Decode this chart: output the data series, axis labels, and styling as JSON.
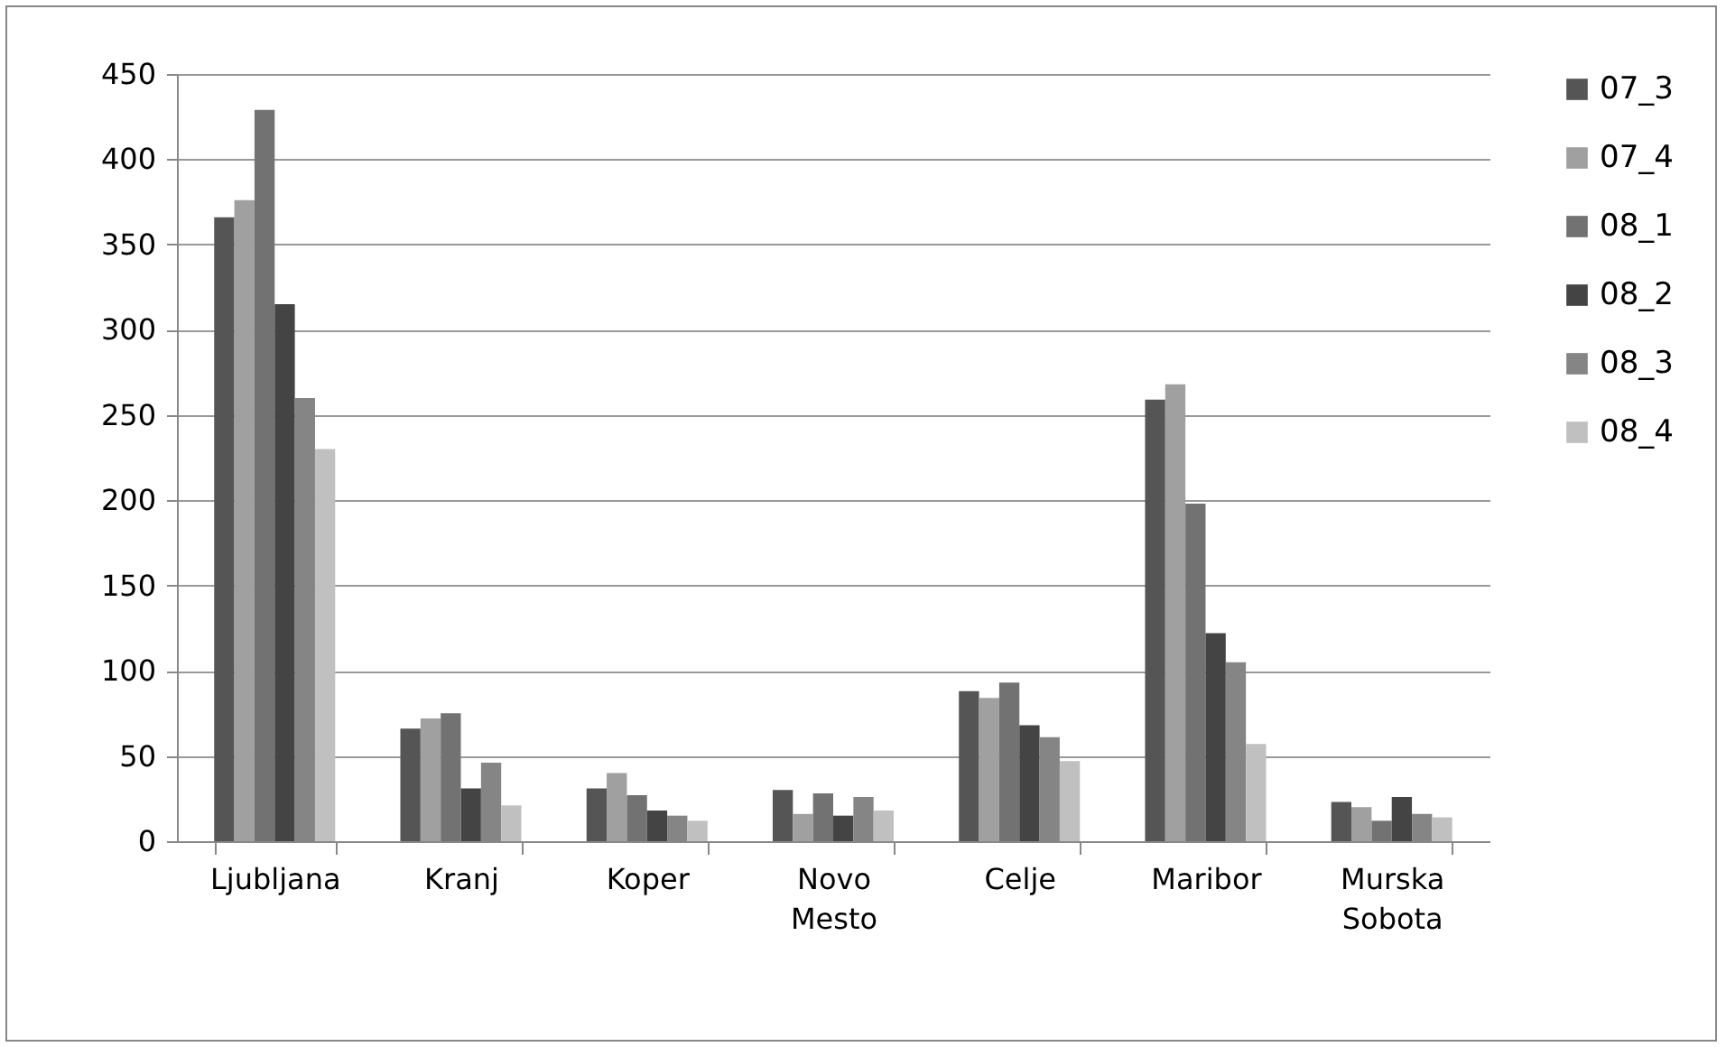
{
  "chart_data": {
    "type": "bar",
    "categories": [
      "Ljubljana",
      "Kranj",
      "Koper",
      "Novo Mesto",
      "Celje",
      "Maribor",
      "Murska Sobota"
    ],
    "series": [
      {
        "name": "07_3",
        "color": "#555555",
        "values": [
          366,
          66,
          31,
          30,
          88,
          259,
          23
        ]
      },
      {
        "name": "07_4",
        "color": "#a0a0a0",
        "values": [
          376,
          72,
          40,
          16,
          84,
          268,
          20
        ]
      },
      {
        "name": "08_1",
        "color": "#727272",
        "values": [
          429,
          75,
          27,
          28,
          93,
          198,
          12
        ]
      },
      {
        "name": "08_2",
        "color": "#444444",
        "values": [
          315,
          31,
          18,
          15,
          68,
          122,
          26
        ]
      },
      {
        "name": "08_3",
        "color": "#858585",
        "values": [
          260,
          46,
          15,
          26,
          61,
          105,
          16
        ]
      },
      {
        "name": "08_4",
        "color": "#c0c0c0",
        "values": [
          230,
          21,
          12,
          18,
          47,
          57,
          14
        ]
      }
    ],
    "ylim": [
      0,
      450
    ],
    "yticks": [
      0,
      50,
      100,
      150,
      200,
      250,
      300,
      350,
      400,
      450
    ],
    "grid": "y",
    "legend": "right"
  }
}
